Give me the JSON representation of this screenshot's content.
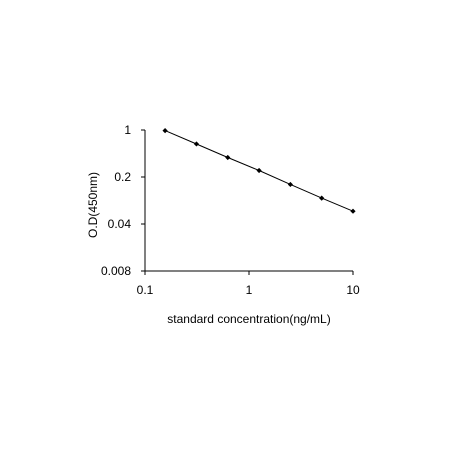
{
  "chart_data": {
    "type": "line",
    "title": "",
    "xlabel": "standard concentration(ng/mL)",
    "ylabel": "O.D(450nm)",
    "x_scale": "log",
    "y_scale": "log",
    "xlim": [
      0.1,
      10
    ],
    "ylim": [
      0.008,
      1
    ],
    "x_ticks": [
      0.1,
      1,
      10
    ],
    "x_tick_labels": [
      "0.1",
      "1",
      "10"
    ],
    "y_ticks": [
      1,
      0.2,
      0.04,
      0.008
    ],
    "y_tick_labels": [
      "1",
      "0.2",
      "0.04",
      "0.008"
    ],
    "grid": false,
    "legend": "none",
    "series": [
      {
        "x": [
          0.156,
          0.3125,
          0.625,
          1.25,
          2.5,
          5,
          10
        ],
        "y": [
          0.98,
          0.62,
          0.39,
          0.25,
          0.155,
          0.097,
          0.062
        ]
      }
    ],
    "colors": {
      "line": "#000000",
      "marker": "#000000",
      "axis": "#000000"
    }
  }
}
